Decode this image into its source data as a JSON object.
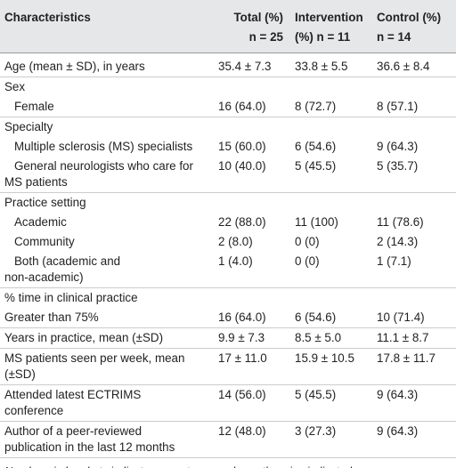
{
  "header": {
    "columns": [
      {
        "lines": [
          "Characteristics"
        ]
      },
      {
        "lines": [
          "Total (%)",
          "n = 25"
        ]
      },
      {
        "lines": [
          "Intervention",
          "(%) n = 11"
        ]
      },
      {
        "lines": [
          "Control (%)",
          "n = 14"
        ]
      }
    ]
  },
  "table": {
    "rows": [
      {
        "label": [
          "Age (mean ± SD), in years"
        ],
        "cells": [
          "35.4 ± 7.3",
          "33.8 ± 5.5",
          "36.6 ± 8.4"
        ]
      },
      {
        "label": [
          "Sex"
        ],
        "section": true
      },
      {
        "label": [
          "Female"
        ],
        "indent": true,
        "cells": [
          "16 (64.0)",
          "8 (72.7)",
          "8 (57.1)"
        ]
      },
      {
        "label": [
          "Specialty"
        ],
        "section": true
      },
      {
        "label": [
          "Multiple sclerosis (MS) specialists"
        ],
        "indent": true,
        "cells": [
          "15 (60.0)",
          "6 (54.6)",
          "9 (64.3)"
        ]
      },
      {
        "label": [
          "General neurologists who care for",
          "MS patients"
        ],
        "indent": true,
        "cells": [
          "10 (40.0)",
          "5 (45.5)",
          "5 (35.7)"
        ]
      },
      {
        "label": [
          "Practice setting"
        ],
        "section": true
      },
      {
        "label": [
          "Academic"
        ],
        "indent": true,
        "cells": [
          "22 (88.0)",
          "11 (100)",
          "11 (78.6)"
        ]
      },
      {
        "label": [
          "Community"
        ],
        "indent": true,
        "cells": [
          "2 (8.0)",
          "0 (0)",
          "2 (14.3)"
        ]
      },
      {
        "label": [
          "Both (academic and",
          "non-academic)"
        ],
        "indent": true,
        "cells": [
          "1 (4.0)",
          "0 (0)",
          "1 (7.1)"
        ]
      },
      {
        "label": [
          "% time in clinical practice"
        ],
        "section": true
      },
      {
        "label": [
          "Greater than 75%"
        ],
        "cells": [
          "16 (64.0)",
          "6 (54.6)",
          "10 (71.4)"
        ]
      },
      {
        "label": [
          "Years in practice, mean (±SD)"
        ],
        "cells": [
          "9.9 ± 7.3",
          "8.5 ± 5.0",
          "11.1 ± 8.7"
        ]
      },
      {
        "label": [
          "MS patients seen per week, mean",
          "(±SD)"
        ],
        "cells": [
          "17 ± 11.0",
          "15.9 ± 10.5",
          "17.8 ± 11.7"
        ]
      },
      {
        "label": [
          "Attended latest ECTRIMS",
          "conference"
        ],
        "cells": [
          "14 (56.0)",
          "5 (45.5)",
          "9 (64.3)"
        ]
      },
      {
        "label": [
          "Author of a peer-reviewed",
          "publication in the last 12 months"
        ],
        "cells": [
          "12 (48.0)",
          "3 (27.3)",
          "9 (64.3)"
        ]
      }
    ]
  },
  "footnote": "Numbers in brackets indicate percentages, unless otherwise indicated."
}
